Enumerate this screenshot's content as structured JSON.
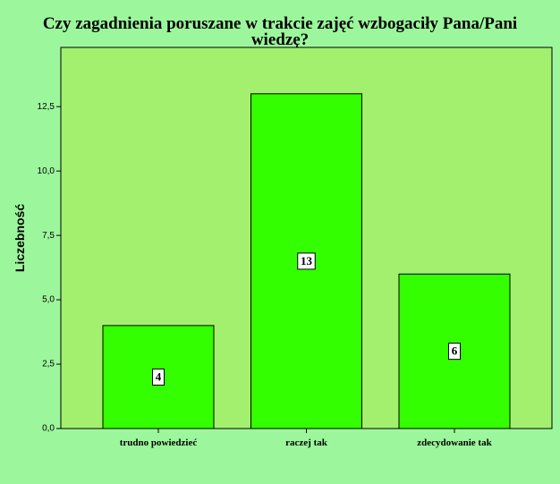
{
  "chart_data": {
    "type": "bar",
    "title": [
      "Czy zagadnienia poruszane w trakcie zajęć wzbogaciły Pana/Pani",
      "wiedzę?"
    ],
    "y_label": "Liczebność",
    "categories": [
      "trudno powiedzieć",
      "raczej tak",
      "zdecydowanie tak"
    ],
    "values": [
      4,
      13,
      6
    ],
    "color": "#33ff00",
    "ylim": [
      0,
      14.8
    ],
    "yticks": [
      {
        "value": 0,
        "label": "0,0"
      },
      {
        "value": 2.5,
        "label": "2,5"
      },
      {
        "value": 5,
        "label": "5,0"
      },
      {
        "value": 7.5,
        "label": "7,5"
      },
      {
        "value": 10,
        "label": "10,0"
      },
      {
        "value": 12.5,
        "label": "12,5"
      }
    ]
  }
}
